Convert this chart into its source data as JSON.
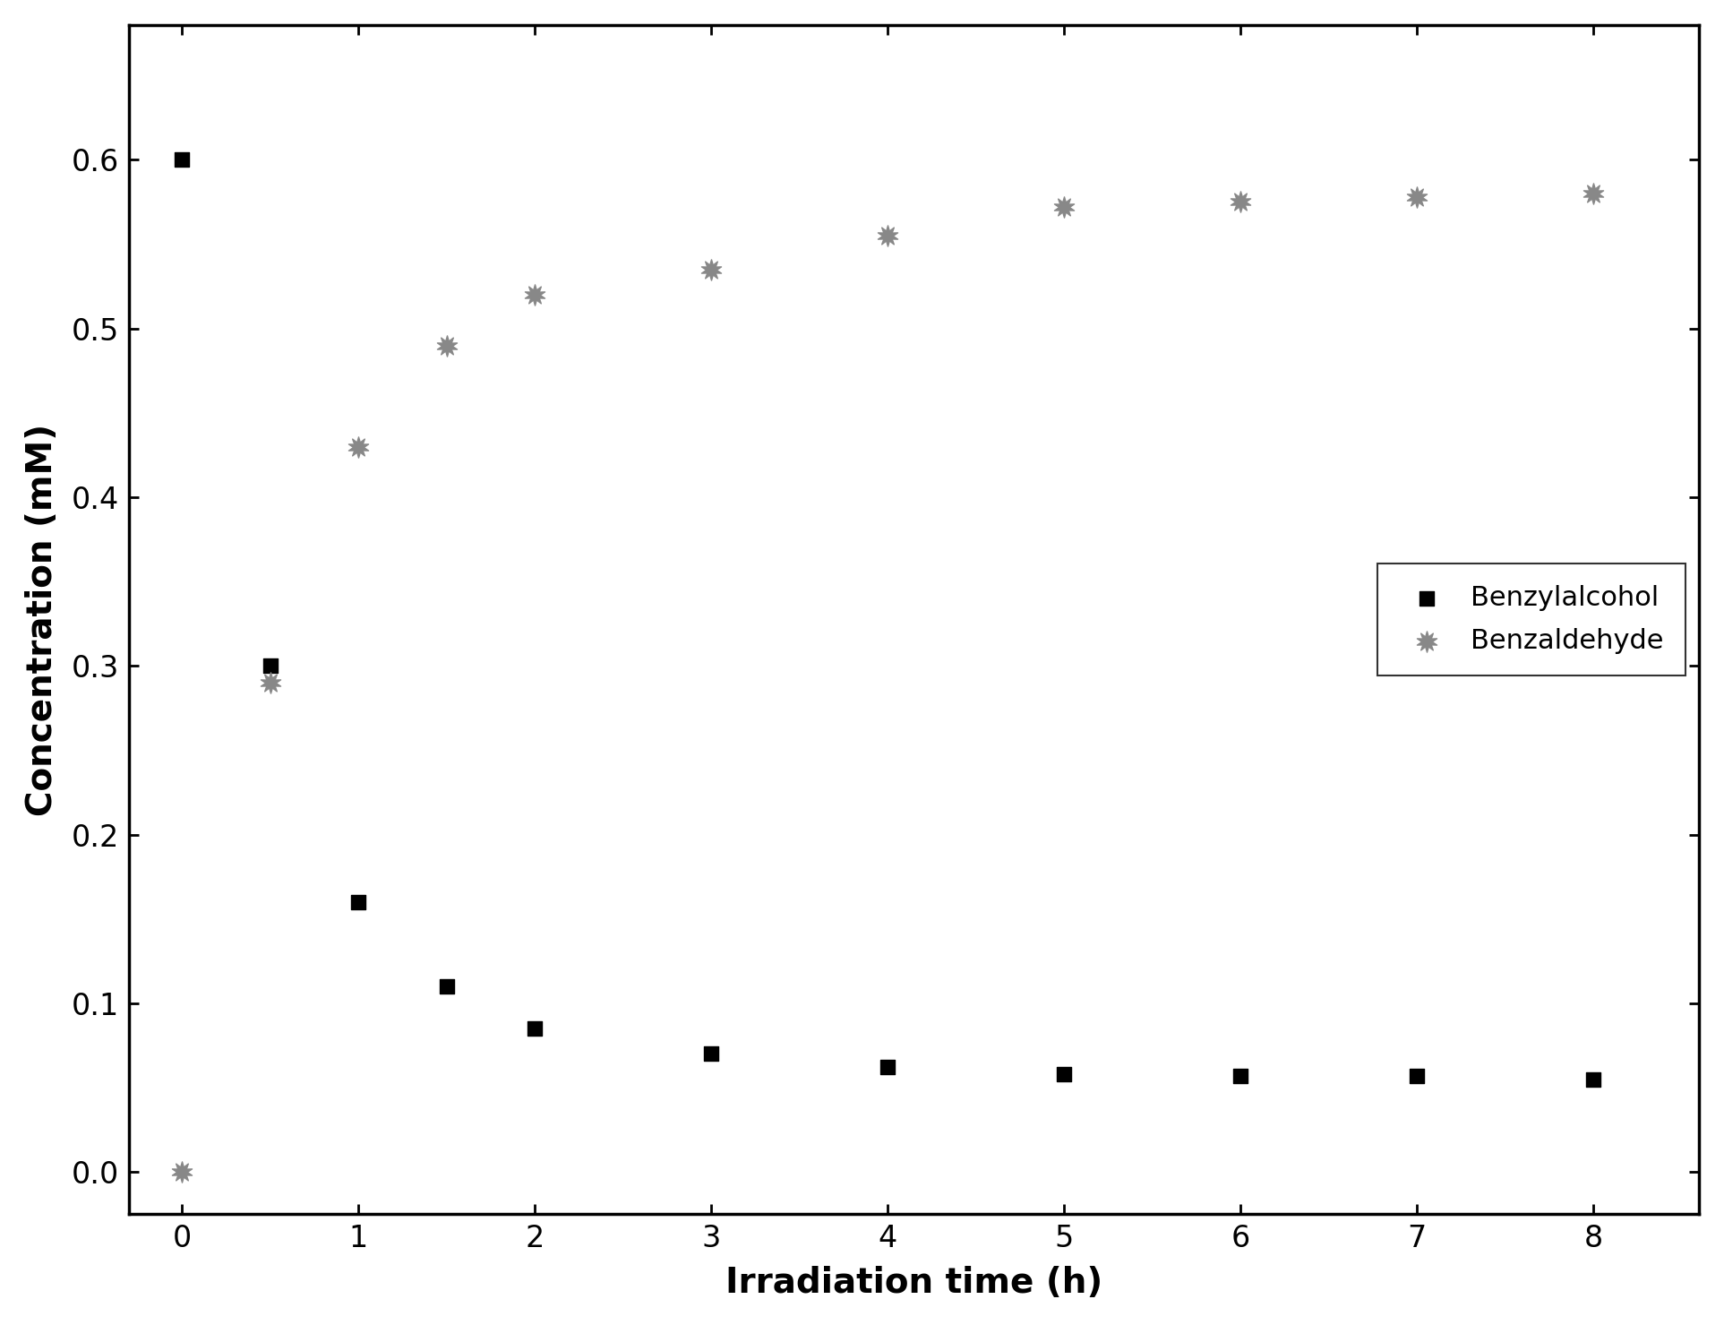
{
  "benzyl_alcohol_x": [
    0,
    0.5,
    1,
    1.5,
    2,
    3,
    4,
    5,
    6,
    7,
    8
  ],
  "benzyl_alcohol_y": [
    0.6,
    0.3,
    0.16,
    0.11,
    0.085,
    0.07,
    0.062,
    0.058,
    0.057,
    0.057,
    0.055
  ],
  "benzaldehyde_x": [
    0,
    0.5,
    1,
    1.5,
    2,
    3,
    4,
    5,
    6,
    7,
    8
  ],
  "benzaldehyde_y": [
    0.0,
    0.29,
    0.43,
    0.49,
    0.52,
    0.535,
    0.555,
    0.572,
    0.575,
    0.578,
    0.58
  ],
  "xlabel": "Irradiation time (h)",
  "ylabel": "Concentration (mM)",
  "xlim": [
    -0.3,
    8.6
  ],
  "ylim": [
    -0.025,
    0.68
  ],
  "xticks": [
    0,
    1,
    2,
    3,
    4,
    5,
    6,
    7,
    8
  ],
  "yticks": [
    0.0,
    0.1,
    0.2,
    0.3,
    0.4,
    0.5,
    0.6
  ],
  "legend_labels": [
    "Benzylalcohol",
    "Benzaldehyde"
  ],
  "alcohol_color": "#000000",
  "aldehyde_color": "#888888",
  "alcohol_marker": "s",
  "marker_size_alcohol": 120,
  "marker_size_aldehyde": 280,
  "xlabel_fontsize": 28,
  "ylabel_fontsize": 28,
  "tick_fontsize": 24,
  "legend_fontsize": 22,
  "background_color": "#ffffff",
  "spine_linewidth": 2.5
}
